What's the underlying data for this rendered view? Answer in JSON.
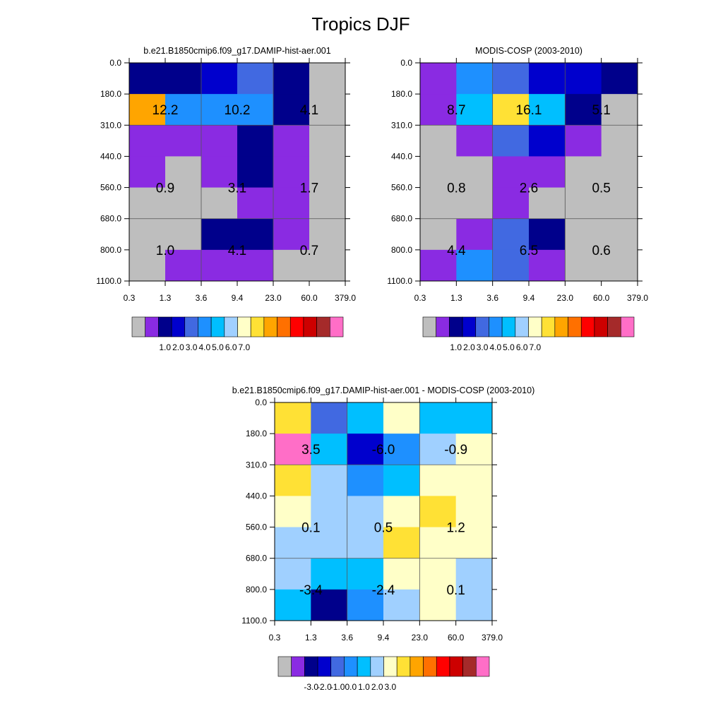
{
  "title": "Tropics DJF",
  "colors": {
    "abs_palette": [
      "#bebebe",
      "#8a2be2",
      "#00008b",
      "#0000cd",
      "#4169e1",
      "#1e90ff",
      "#00bfff",
      "#a0d0ff",
      "#ffffc8",
      "#ffe135",
      "#ffa500",
      "#ff7000",
      "#ff0000",
      "#cd0000",
      "#a52a2a",
      "#ff6ec7"
    ],
    "diff_palette": [
      "#bebebe",
      "#8a2be2",
      "#00008b",
      "#0000cd",
      "#4169e1",
      "#1e90ff",
      "#00bfff",
      "#a0d0ff",
      "#ffffc8",
      "#ffe135",
      "#ffa500",
      "#ff7000",
      "#ff0000",
      "#cd0000",
      "#a52a2a",
      "#ff6ec7"
    ]
  },
  "chart_data": [
    {
      "type": "heatmap",
      "title": "b.e21.B1850cmip6.f09_g17.DAMIP-hist-aer.001",
      "xlabel": "",
      "ylabel": "",
      "x_ticks": [
        "0.3",
        "1.3",
        "3.6",
        "9.4",
        "23.0",
        "60.0",
        "379.0"
      ],
      "y_ticks": [
        "0.0",
        "180.0",
        "310.0",
        "440.0",
        "560.0",
        "680.0",
        "800.0",
        "1100.0"
      ],
      "cell_color_index": [
        [
          2,
          2,
          3,
          4,
          2,
          0
        ],
        [
          10,
          5,
          5,
          5,
          2,
          0
        ],
        [
          1,
          1,
          1,
          2,
          1,
          0
        ],
        [
          1,
          0,
          1,
          2,
          1,
          0
        ],
        [
          0,
          0,
          0,
          1,
          1,
          0
        ],
        [
          0,
          0,
          2,
          2,
          1,
          0
        ],
        [
          0,
          1,
          1,
          1,
          0,
          0
        ]
      ],
      "block_labels": [
        [
          "12.2",
          "10.2",
          "4.1"
        ],
        [
          "0.9",
          "3.1",
          "1.7"
        ],
        [
          "1.0",
          "4.1",
          "0.7"
        ]
      ],
      "colorbar_labels": [
        "1.0",
        "2.0",
        "3.0",
        "4.0",
        "5.0",
        "6.0",
        "7.0"
      ]
    },
    {
      "type": "heatmap",
      "title": "MODIS-COSP (2003-2010)",
      "xlabel": "",
      "ylabel": "",
      "x_ticks": [
        "0.3",
        "1.3",
        "3.6",
        "9.4",
        "23.0",
        "60.0",
        "379.0"
      ],
      "y_ticks": [
        "0.0",
        "180.0",
        "310.0",
        "440.0",
        "560.0",
        "680.0",
        "800.0",
        "1100.0"
      ],
      "cell_color_index": [
        [
          1,
          5,
          4,
          3,
          3,
          2
        ],
        [
          1,
          6,
          9,
          6,
          2,
          0
        ],
        [
          0,
          1,
          4,
          3,
          1,
          0
        ],
        [
          0,
          0,
          1,
          1,
          0,
          0
        ],
        [
          0,
          0,
          1,
          0,
          0,
          0
        ],
        [
          0,
          1,
          4,
          2,
          0,
          0
        ],
        [
          1,
          5,
          4,
          1,
          0,
          0
        ]
      ],
      "block_labels": [
        [
          "8.7",
          "16.1",
          "5.1"
        ],
        [
          "0.8",
          "2.6",
          "0.5"
        ],
        [
          "4.4",
          "6.5",
          "0.6"
        ]
      ],
      "colorbar_labels": [
        "1.0",
        "2.0",
        "3.0",
        "4.0",
        "5.0",
        "6.0",
        "7.0"
      ]
    },
    {
      "type": "heatmap",
      "title": "b.e21.B1850cmip6.f09_g17.DAMIP-hist-aer.001 - MODIS-COSP (2003-2010)",
      "xlabel": "",
      "ylabel": "",
      "x_ticks": [
        "0.3",
        "1.3",
        "3.6",
        "9.4",
        "23.0",
        "60.0",
        "379.0"
      ],
      "y_ticks": [
        "0.0",
        "180.0",
        "310.0",
        "440.0",
        "560.0",
        "680.0",
        "800.0",
        "1100.0"
      ],
      "cell_color_index": [
        [
          9,
          4,
          6,
          8,
          6,
          6
        ],
        [
          15,
          6,
          3,
          5,
          7,
          8
        ],
        [
          9,
          7,
          5,
          6,
          8,
          8
        ],
        [
          8,
          7,
          7,
          8,
          9,
          8
        ],
        [
          7,
          7,
          7,
          9,
          8,
          8
        ],
        [
          7,
          6,
          6,
          8,
          8,
          7
        ],
        [
          6,
          2,
          5,
          7,
          8,
          7
        ]
      ],
      "block_labels": [
        [
          "3.5",
          "-6.0",
          "-0.9"
        ],
        [
          "0.1",
          "0.5",
          "1.2"
        ],
        [
          "-3.4",
          "-2.4",
          "0.1"
        ]
      ],
      "colorbar_labels": [
        "-3.0",
        "-2.0",
        "-1.0",
        "0.0",
        "1.0",
        "2.0",
        "3.0"
      ]
    }
  ]
}
